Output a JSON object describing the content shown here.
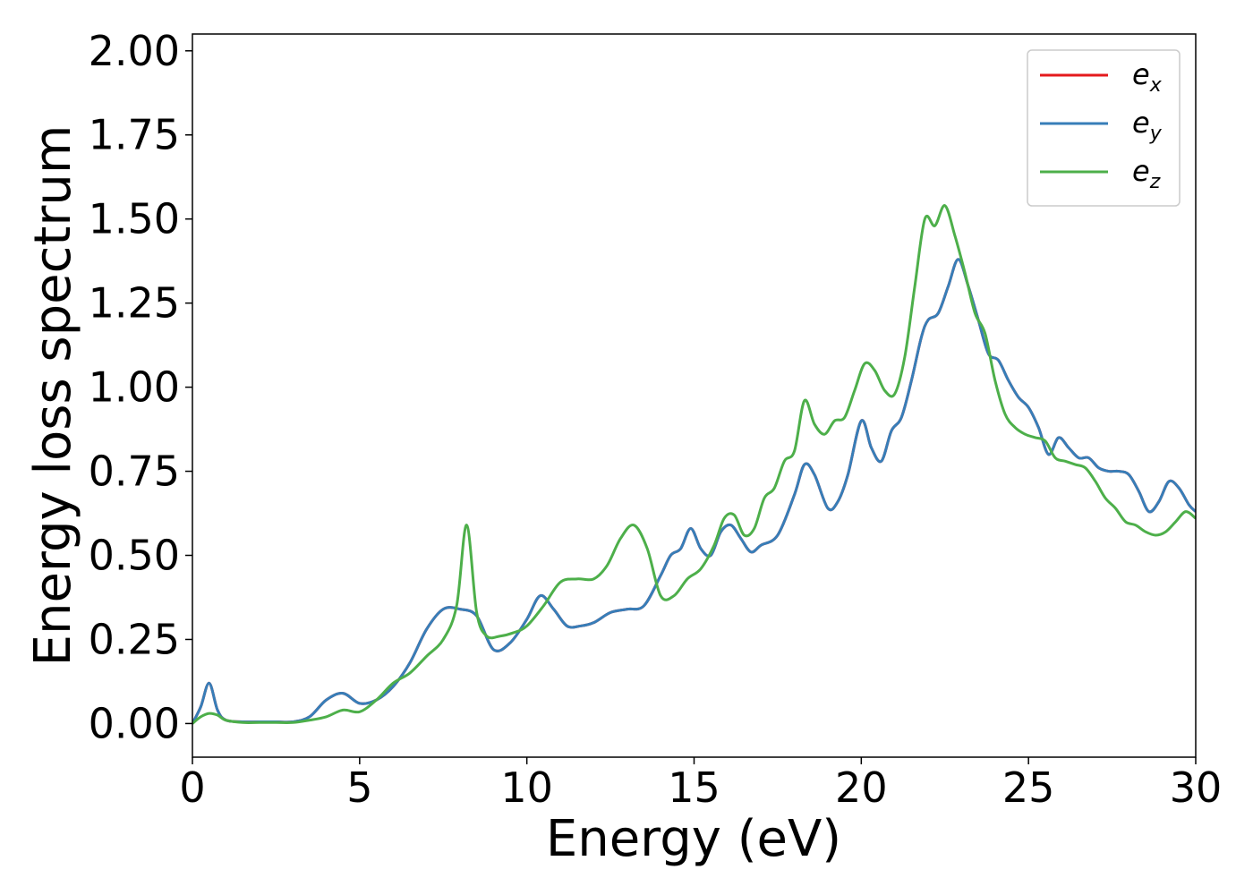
{
  "chart_data": {
    "type": "line",
    "xlabel": "Energy (eV)",
    "ylabel": "Energy loss spectrum",
    "xlim": [
      0,
      30
    ],
    "ylim": [
      -0.1,
      2.05
    ],
    "xticks": [
      0,
      5,
      10,
      15,
      20,
      25,
      30
    ],
    "xtick_labels": [
      "0",
      "5",
      "10",
      "15",
      "20",
      "25",
      "30"
    ],
    "yticks": [
      0.0,
      0.25,
      0.5,
      0.75,
      1.0,
      1.25,
      1.5,
      1.75,
      2.0
    ],
    "ytick_labels": [
      "0.00",
      "0.25",
      "0.50",
      "0.75",
      "1.00",
      "1.25",
      "1.50",
      "1.75",
      "2.00"
    ],
    "grid": false,
    "legend_position": "top-right",
    "series": [
      {
        "name": "e_x",
        "legend_base": "e",
        "legend_sub": "x",
        "color": "#e41a1c",
        "x": [
          0,
          0.25,
          0.5,
          0.75,
          1,
          1.5,
          2,
          2.5,
          3,
          3.5,
          4,
          4.5,
          5,
          5.5,
          6,
          6.5,
          7,
          7.5,
          8,
          8.5,
          9,
          9.5,
          10,
          10.4,
          10.8,
          11.2,
          11.6,
          12,
          12.5,
          13,
          13.5,
          14,
          14.3,
          14.6,
          14.9,
          15.2,
          15.5,
          15.8,
          16.1,
          16.4,
          16.7,
          17,
          17.5,
          18,
          18.3,
          18.6,
          19,
          19.3,
          19.6,
          20,
          20.3,
          20.6,
          20.9,
          21.2,
          21.5,
          21.8,
          22,
          22.3,
          22.6,
          22.9,
          23.2,
          23.5,
          23.8,
          24.1,
          24.4,
          24.7,
          25,
          25.3,
          25.6,
          25.9,
          26.2,
          26.5,
          26.8,
          27.1,
          27.4,
          27.7,
          28,
          28.3,
          28.6,
          28.9,
          29.2,
          29.5,
          29.8,
          30
        ],
        "y": [
          0.0,
          0.05,
          0.12,
          0.04,
          0.01,
          0.005,
          0.005,
          0.005,
          0.005,
          0.02,
          0.07,
          0.09,
          0.06,
          0.07,
          0.11,
          0.18,
          0.28,
          0.34,
          0.34,
          0.32,
          0.22,
          0.24,
          0.31,
          0.38,
          0.34,
          0.29,
          0.29,
          0.3,
          0.33,
          0.34,
          0.35,
          0.44,
          0.5,
          0.52,
          0.58,
          0.52,
          0.5,
          0.57,
          0.59,
          0.55,
          0.51,
          0.53,
          0.56,
          0.68,
          0.77,
          0.74,
          0.64,
          0.66,
          0.74,
          0.9,
          0.82,
          0.78,
          0.87,
          0.91,
          1.02,
          1.15,
          1.2,
          1.22,
          1.3,
          1.38,
          1.3,
          1.2,
          1.1,
          1.08,
          1.02,
          0.97,
          0.94,
          0.88,
          0.8,
          0.85,
          0.82,
          0.79,
          0.79,
          0.76,
          0.75,
          0.75,
          0.74,
          0.69,
          0.63,
          0.66,
          0.72,
          0.7,
          0.65,
          0.63
        ]
      },
      {
        "name": "e_y",
        "legend_base": "e",
        "legend_sub": "y",
        "color": "#377eb8",
        "x": [
          0,
          0.25,
          0.5,
          0.75,
          1,
          1.5,
          2,
          2.5,
          3,
          3.5,
          4,
          4.5,
          5,
          5.5,
          6,
          6.5,
          7,
          7.5,
          8,
          8.5,
          9,
          9.5,
          10,
          10.4,
          10.8,
          11.2,
          11.6,
          12,
          12.5,
          13,
          13.5,
          14,
          14.3,
          14.6,
          14.9,
          15.2,
          15.5,
          15.8,
          16.1,
          16.4,
          16.7,
          17,
          17.5,
          18,
          18.3,
          18.6,
          19,
          19.3,
          19.6,
          20,
          20.3,
          20.6,
          20.9,
          21.2,
          21.5,
          21.8,
          22,
          22.3,
          22.6,
          22.9,
          23.2,
          23.5,
          23.8,
          24.1,
          24.4,
          24.7,
          25,
          25.3,
          25.6,
          25.9,
          26.2,
          26.5,
          26.8,
          27.1,
          27.4,
          27.7,
          28,
          28.3,
          28.6,
          28.9,
          29.2,
          29.5,
          29.8,
          30
        ],
        "y": [
          0.0,
          0.05,
          0.12,
          0.04,
          0.01,
          0.005,
          0.005,
          0.005,
          0.005,
          0.02,
          0.07,
          0.09,
          0.06,
          0.07,
          0.11,
          0.18,
          0.28,
          0.34,
          0.34,
          0.32,
          0.22,
          0.24,
          0.31,
          0.38,
          0.34,
          0.29,
          0.29,
          0.3,
          0.33,
          0.34,
          0.35,
          0.44,
          0.5,
          0.52,
          0.58,
          0.52,
          0.5,
          0.57,
          0.59,
          0.55,
          0.51,
          0.53,
          0.56,
          0.68,
          0.77,
          0.74,
          0.64,
          0.66,
          0.74,
          0.9,
          0.82,
          0.78,
          0.87,
          0.91,
          1.02,
          1.15,
          1.2,
          1.22,
          1.3,
          1.38,
          1.3,
          1.2,
          1.1,
          1.08,
          1.02,
          0.97,
          0.94,
          0.88,
          0.8,
          0.85,
          0.82,
          0.79,
          0.79,
          0.76,
          0.75,
          0.75,
          0.74,
          0.69,
          0.63,
          0.66,
          0.72,
          0.7,
          0.65,
          0.63
        ]
      },
      {
        "name": "e_z",
        "legend_base": "e",
        "legend_sub": "z",
        "color": "#4daf4a",
        "x": [
          0,
          0.25,
          0.5,
          0.75,
          1,
          1.5,
          2,
          2.5,
          3,
          3.5,
          4,
          4.5,
          5,
          5.5,
          6,
          6.5,
          7,
          7.5,
          7.9,
          8.2,
          8.5,
          8.8,
          9.2,
          9.6,
          10,
          10.5,
          11,
          11.5,
          12,
          12.4,
          12.8,
          13.2,
          13.6,
          14,
          14.4,
          14.8,
          15.2,
          15.6,
          15.9,
          16.2,
          16.5,
          16.8,
          17.1,
          17.4,
          17.7,
          18,
          18.3,
          18.6,
          18.9,
          19.2,
          19.5,
          19.8,
          20.1,
          20.4,
          20.7,
          21,
          21.3,
          21.6,
          21.9,
          22.2,
          22.5,
          22.8,
          23.1,
          23.4,
          23.7,
          24,
          24.3,
          24.6,
          24.9,
          25.2,
          25.5,
          25.8,
          26.1,
          26.4,
          26.7,
          27,
          27.3,
          27.6,
          27.9,
          28.2,
          28.5,
          28.8,
          29.1,
          29.4,
          29.7,
          30
        ],
        "y": [
          0.0,
          0.02,
          0.03,
          0.025,
          0.01,
          0.003,
          0.003,
          0.003,
          0.003,
          0.01,
          0.02,
          0.04,
          0.035,
          0.07,
          0.12,
          0.15,
          0.2,
          0.25,
          0.35,
          0.59,
          0.33,
          0.26,
          0.26,
          0.27,
          0.29,
          0.35,
          0.42,
          0.43,
          0.43,
          0.47,
          0.55,
          0.59,
          0.52,
          0.38,
          0.38,
          0.43,
          0.46,
          0.53,
          0.61,
          0.62,
          0.56,
          0.58,
          0.67,
          0.7,
          0.78,
          0.81,
          0.96,
          0.89,
          0.86,
          0.9,
          0.91,
          0.99,
          1.07,
          1.05,
          0.99,
          0.98,
          1.09,
          1.3,
          1.5,
          1.48,
          1.54,
          1.45,
          1.34,
          1.22,
          1.16,
          1.02,
          0.92,
          0.88,
          0.86,
          0.85,
          0.84,
          0.79,
          0.78,
          0.77,
          0.76,
          0.72,
          0.67,
          0.64,
          0.6,
          0.59,
          0.57,
          0.56,
          0.57,
          0.6,
          0.63,
          0.61
        ]
      }
    ]
  }
}
